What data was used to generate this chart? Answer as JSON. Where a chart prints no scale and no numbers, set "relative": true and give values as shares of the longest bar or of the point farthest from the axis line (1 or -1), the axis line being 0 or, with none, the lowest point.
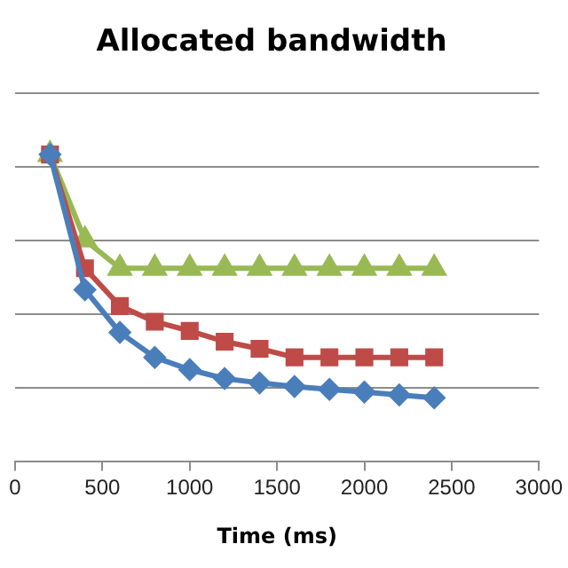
{
  "chart_data": {
    "type": "line",
    "title": "Allocated bandwidth",
    "xlabel": "Time (ms)",
    "relative": true,
    "x": [
      200,
      400,
      600,
      800,
      1000,
      1200,
      1400,
      1600,
      1800,
      2000,
      2200,
      2400
    ],
    "xlim": [
      0,
      3000
    ],
    "xticks": [
      0,
      500,
      1000,
      1500,
      2000,
      2500,
      3000
    ],
    "grid": "y",
    "legend": false,
    "series": [
      {
        "color": "#4a7ebb",
        "marker": "diamond",
        "values": [
          1,
          0.56,
          0.421,
          0.34,
          0.3,
          0.271,
          0.257,
          0.245,
          0.236,
          0.227,
          0.218,
          0.208
        ]
      },
      {
        "color": "#be4b48",
        "marker": "square",
        "values": [
          1,
          0.63,
          0.507,
          0.456,
          0.426,
          0.391,
          0.368,
          0.34,
          0.34,
          0.34,
          0.34,
          0.34
        ]
      },
      {
        "color": "#98b954",
        "marker": "triangle",
        "values": [
          1,
          0.722,
          0.63,
          0.63,
          0.63,
          0.63,
          0.63,
          0.63,
          0.63,
          0.63,
          0.63,
          0.63
        ]
      }
    ]
  }
}
